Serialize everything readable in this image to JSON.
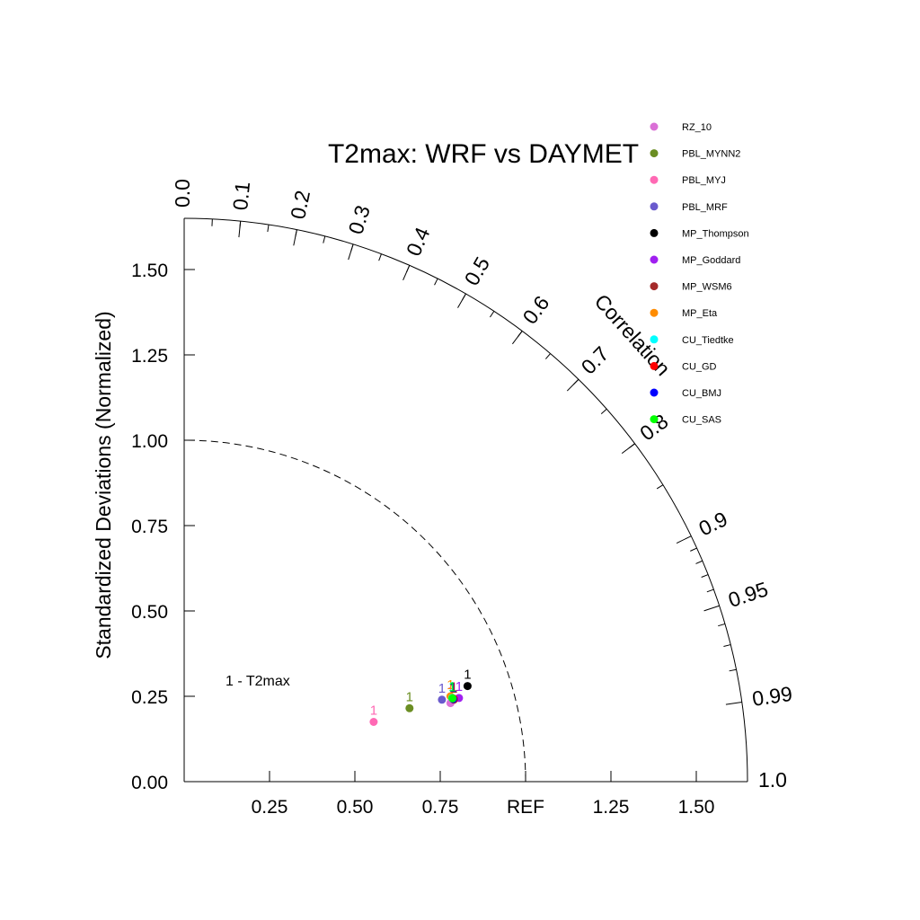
{
  "chart_data": {
    "type": "scatter",
    "subtype": "taylor-diagram",
    "title": "T2max: WRF vs DAYMET",
    "ylabel": "Standardized Deviations (Normalized)",
    "arc_label": "Correlation",
    "case_label": "1 - T2max",
    "ref_label": "REF",
    "ylim": [
      0,
      1.65
    ],
    "xlim": [
      0,
      1.65
    ],
    "y_ticks": [
      {
        "v": 0.0,
        "label": "0.00"
      },
      {
        "v": 0.25,
        "label": "0.25"
      },
      {
        "v": 0.5,
        "label": "0.50"
      },
      {
        "v": 0.75,
        "label": "0.75"
      },
      {
        "v": 1.0,
        "label": "1.00"
      },
      {
        "v": 1.25,
        "label": "1.25"
      },
      {
        "v": 1.5,
        "label": "1.50"
      }
    ],
    "x_ticks": [
      {
        "v": 0.25,
        "label": "0.25"
      },
      {
        "v": 0.5,
        "label": "0.50"
      },
      {
        "v": 0.75,
        "label": "0.75"
      },
      {
        "v": 1.0,
        "label": "REF"
      },
      {
        "v": 1.25,
        "label": "1.25"
      },
      {
        "v": 1.5,
        "label": "1.50"
      }
    ],
    "corr_labels": [
      {
        "r": 0.0,
        "label": "0.0"
      },
      {
        "r": 0.1,
        "label": "0.1"
      },
      {
        "r": 0.2,
        "label": "0.2"
      },
      {
        "r": 0.3,
        "label": "0.3"
      },
      {
        "r": 0.4,
        "label": "0.4"
      },
      {
        "r": 0.5,
        "label": "0.5"
      },
      {
        "r": 0.6,
        "label": "0.6"
      },
      {
        "r": 0.7,
        "label": "0.7"
      },
      {
        "r": 0.8,
        "label": "0.8"
      },
      {
        "r": 0.9,
        "label": "0.9"
      },
      {
        "r": 0.95,
        "label": "0.95"
      },
      {
        "r": 0.99,
        "label": "0.99"
      },
      {
        "r": 1.0,
        "label": "1.0"
      }
    ],
    "series": [
      {
        "name": "RZ_10",
        "color": "#da70d6",
        "x": 0.78,
        "y": 0.23,
        "marker_label": "1"
      },
      {
        "name": "PBL_MYNN2",
        "color": "#6b8e23",
        "x": 0.66,
        "y": 0.215,
        "marker_label": "1"
      },
      {
        "name": "PBL_MYJ",
        "color": "#ff69b4",
        "x": 0.555,
        "y": 0.175,
        "marker_label": "1"
      },
      {
        "name": "PBL_MRF",
        "color": "#6a5acd",
        "x": 0.755,
        "y": 0.24,
        "marker_label": "1"
      },
      {
        "name": "MP_Thompson",
        "color": "#000000",
        "x": 0.83,
        "y": 0.28,
        "marker_label": "1"
      },
      {
        "name": "MP_Goddard",
        "color": "#a020f0",
        "x": 0.805,
        "y": 0.245,
        "marker_label": "1"
      },
      {
        "name": "MP_WSM6",
        "color": "#a52a2a",
        "x": 0.79,
        "y": 0.24,
        "marker_label": "1"
      },
      {
        "name": "MP_Eta",
        "color": "#ff8c00",
        "x": 0.78,
        "y": 0.25,
        "marker_label": "1"
      },
      {
        "name": "CU_Tiedtke",
        "color": "#00ffff",
        "x": 0.785,
        "y": 0.245,
        "marker_label": "1"
      },
      {
        "name": "CU_GD",
        "color": "#ff0000",
        "x": 0.79,
        "y": 0.243,
        "marker_label": "1"
      },
      {
        "name": "CU_BMJ",
        "color": "#0000ff",
        "x": 0.788,
        "y": 0.242,
        "marker_label": "1"
      },
      {
        "name": "CU_SAS",
        "color": "#00ff00",
        "x": 0.786,
        "y": 0.244,
        "marker_label": "1"
      }
    ],
    "grid": false,
    "legend_position": "top-right"
  }
}
